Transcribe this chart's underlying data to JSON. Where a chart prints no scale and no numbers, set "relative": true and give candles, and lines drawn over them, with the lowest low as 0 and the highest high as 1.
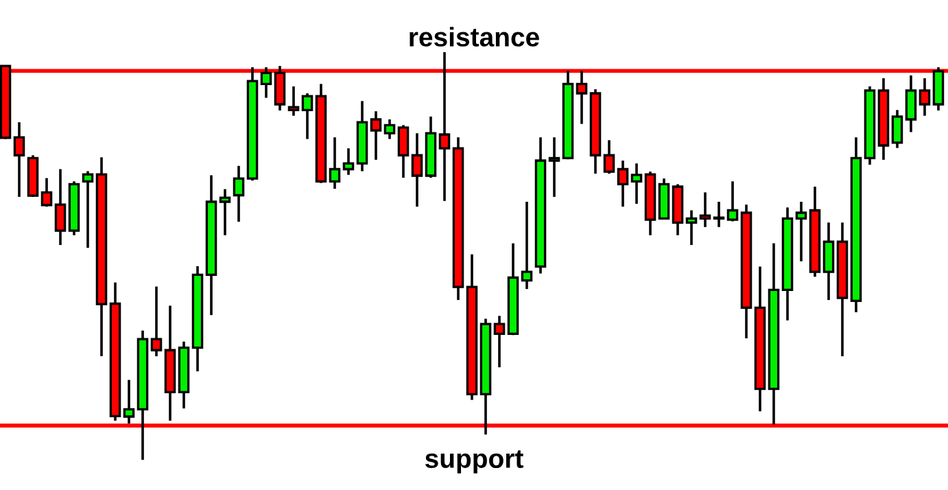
{
  "chart_data": {
    "type": "candlestick",
    "relative": true,
    "colors": [
      "#ff0000",
      "#ff0000",
      "#ff0000",
      "#ff0000",
      "#ff0000",
      "#00ee00",
      "#00ee00",
      "#ff0000",
      "#ff0000",
      "#00ee00",
      "#00ee00",
      "#ff0000",
      "#ff0000",
      "#00ee00",
      "#00ee00",
      "#00ee00",
      "#00ee00",
      "#00ee00",
      "#00ee00",
      "#00ee00",
      "#ff0000",
      "#ff0000",
      "#00ee00",
      "#ff0000",
      "#00ee00",
      "#00ee00",
      "#00ee00",
      "#ff0000",
      "#00ee00",
      "#ff0000",
      "#ff0000",
      "#00ee00",
      "#ff0000",
      "#ff0000",
      "#ff0000",
      "#00ee00",
      "#ff0000",
      "#00ee00",
      "#00ee00",
      "#00ee00",
      "#00ee00",
      "#00ee00",
      "#ff0000",
      "#ff0000",
      "#ff0000",
      "#ff0000",
      "#00ee00",
      "#ff0000",
      "#00ee00",
      "#ff0000",
      "#00ee00",
      "#ff0000",
      "#00ee00",
      "#00ee00",
      "#ff0000",
      "#ff0000",
      "#00ee00",
      "#00ee00",
      "#00ee00",
      "#ff0000",
      "#00ee00",
      "#ff0000",
      "#00ee00",
      "#00ee00",
      "#ff0000",
      "#00ee00",
      "#00ee00",
      "#ff0000",
      "#00ee00"
    ],
    "categories": [
      null,
      null,
      null,
      null,
      null,
      null,
      null,
      null,
      null,
      null,
      null,
      null,
      null,
      null,
      null,
      null,
      null,
      null,
      null,
      null,
      null,
      null,
      null,
      null,
      null,
      null,
      null,
      null,
      null,
      null,
      null,
      null,
      null,
      null,
      null,
      null,
      null,
      null,
      null,
      null,
      null,
      null,
      null,
      null,
      null,
      null,
      null,
      null,
      null,
      null,
      null,
      null,
      null,
      null,
      null,
      null,
      null,
      null,
      null,
      null,
      null,
      null,
      null,
      null,
      null,
      null,
      null,
      null,
      null
    ],
    "ohlc": [
      [
        0.966,
        0.966,
        0.787,
        0.79
      ],
      [
        0.791,
        0.828,
        0.645,
        0.747
      ],
      [
        0.74,
        0.747,
        0.645,
        0.648
      ],
      [
        0.656,
        0.691,
        0.621,
        0.625
      ],
      [
        0.626,
        0.713,
        0.527,
        0.562
      ],
      [
        0.562,
        0.683,
        0.551,
        0.676
      ],
      [
        0.683,
        0.708,
        0.52,
        0.7
      ],
      [
        0.7,
        0.742,
        0.254,
        0.382
      ],
      [
        0.383,
        0.435,
        0.096,
        0.107
      ],
      [
        0.106,
        0.196,
        0.089,
        0.124
      ],
      [
        0.124,
        0.317,
        0.0,
        0.296
      ],
      [
        0.296,
        0.425,
        0.254,
        0.269
      ],
      [
        0.269,
        0.378,
        0.096,
        0.166
      ],
      [
        0.166,
        0.29,
        0.126,
        0.275
      ],
      [
        0.275,
        0.475,
        0.217,
        0.454
      ],
      [
        0.454,
        0.698,
        0.355,
        0.633
      ],
      [
        0.633,
        0.664,
        0.551,
        0.643
      ],
      [
        0.649,
        0.721,
        0.584,
        0.69
      ],
      [
        0.69,
        0.963,
        0.685,
        0.929
      ],
      [
        0.922,
        0.963,
        0.888,
        0.949
      ],
      [
        0.949,
        0.966,
        0.857,
        0.872
      ],
      [
        0.865,
        0.916,
        0.844,
        0.858
      ],
      [
        0.858,
        0.899,
        0.787,
        0.892
      ],
      [
        0.892,
        0.922,
        0.679,
        0.683
      ],
      [
        0.683,
        0.791,
        0.665,
        0.713
      ],
      [
        0.713,
        0.764,
        0.699,
        0.727
      ],
      [
        0.727,
        0.88,
        0.708,
        0.828
      ],
      [
        0.835,
        0.855,
        0.736,
        0.808
      ],
      [
        0.801,
        0.835,
        0.787,
        0.821
      ],
      [
        0.815,
        0.821,
        0.692,
        0.747
      ],
      [
        0.747,
        0.801,
        0.621,
        0.697
      ],
      [
        0.697,
        0.842,
        0.692,
        0.801
      ],
      [
        0.798,
        1.0,
        0.635,
        0.764
      ],
      [
        0.764,
        0.791,
        0.392,
        0.424
      ],
      [
        0.424,
        0.504,
        0.147,
        0.161
      ],
      [
        0.161,
        0.346,
        0.062,
        0.333
      ],
      [
        0.333,
        0.353,
        0.227,
        0.309
      ],
      [
        0.309,
        0.531,
        0.306,
        0.447
      ],
      [
        0.44,
        0.633,
        0.419,
        0.461
      ],
      [
        0.474,
        0.791,
        0.457,
        0.734
      ],
      [
        0.734,
        0.791,
        0.645,
        0.74
      ],
      [
        0.74,
        0.954,
        0.737,
        0.922
      ],
      [
        0.922,
        0.954,
        0.824,
        0.899
      ],
      [
        0.899,
        0.909,
        0.702,
        0.747
      ],
      [
        0.747,
        0.784,
        0.702,
        0.707
      ],
      [
        0.713,
        0.734,
        0.621,
        0.676
      ],
      [
        0.683,
        0.727,
        0.628,
        0.699
      ],
      [
        0.7,
        0.707,
        0.551,
        0.589
      ],
      [
        0.592,
        0.69,
        0.592,
        0.676
      ],
      [
        0.67,
        0.676,
        0.551,
        0.582
      ],
      [
        0.582,
        0.612,
        0.527,
        0.592
      ],
      [
        0.599,
        0.656,
        0.571,
        0.592
      ],
      [
        0.592,
        0.633,
        0.571,
        0.592
      ],
      [
        0.589,
        0.683,
        0.585,
        0.612
      ],
      [
        0.606,
        0.626,
        0.298,
        0.373
      ],
      [
        0.373,
        0.474,
        0.119,
        0.174
      ],
      [
        0.174,
        0.531,
        0.087,
        0.417
      ],
      [
        0.417,
        0.619,
        0.342,
        0.592
      ],
      [
        0.592,
        0.633,
        0.487,
        0.606
      ],
      [
        0.612,
        0.67,
        0.449,
        0.461
      ],
      [
        0.461,
        0.582,
        0.392,
        0.535
      ],
      [
        0.535,
        0.582,
        0.254,
        0.397
      ],
      [
        0.39,
        0.791,
        0.362,
        0.74
      ],
      [
        0.74,
        0.916,
        0.724,
        0.906
      ],
      [
        0.906,
        0.936,
        0.736,
        0.771
      ],
      [
        0.778,
        0.858,
        0.765,
        0.842
      ],
      [
        0.835,
        0.943,
        0.804,
        0.906
      ],
      [
        0.906,
        0.936,
        0.844,
        0.872
      ],
      [
        0.872,
        0.963,
        0.857,
        0.953
      ]
    ],
    "ref_lines": [
      {
        "axis": "y",
        "value": 0.954,
        "label": "resistance",
        "color": "#ff0000"
      },
      {
        "axis": "y",
        "value": 0.084,
        "label": "support",
        "color": "#ff0000"
      }
    ]
  }
}
